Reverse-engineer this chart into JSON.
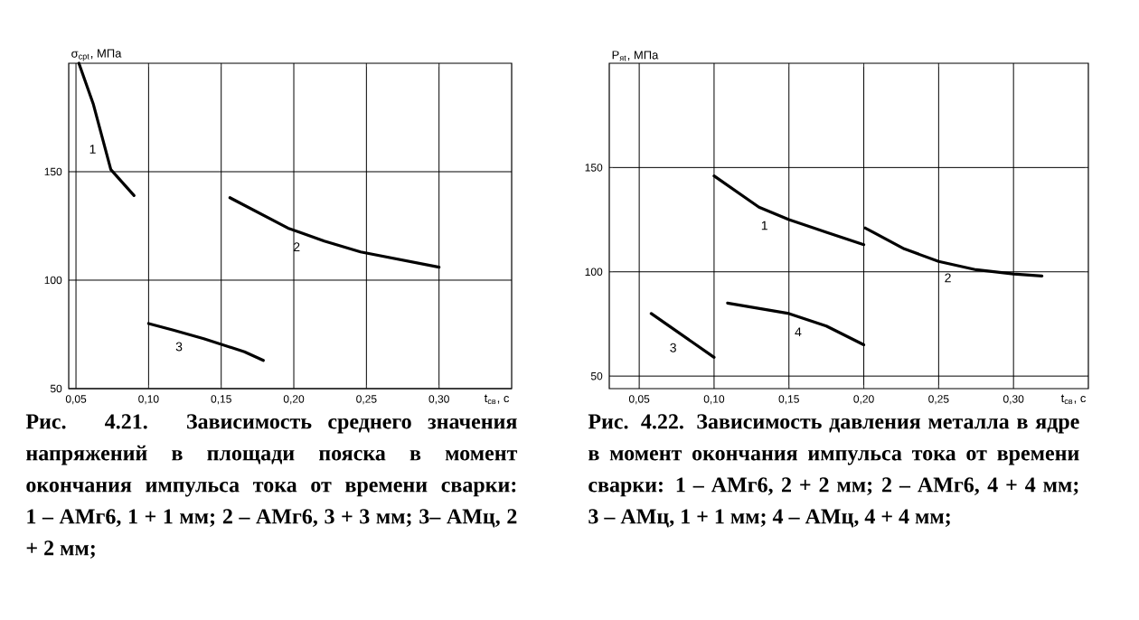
{
  "chart_data": [
    {
      "type": "line",
      "title": "Рис. 4.21. Зависимость среднего значения напряжений в площади пояска в момент окончания импульса тока от времени сварки: 1 – АМг6, 1 + 1 мм; 2 – АМг6, 3 + 3 мм; 3– АМц, 2 + 2 мм;",
      "xlabel": "t$_{св}$, с",
      "ylabel": "σ$_{срt}$, МПа",
      "series": [
        {
          "color": "#000000",
          "x": [
            0.052,
            0.062,
            0.074,
            0.09
          ],
          "values": [
            200,
            181,
            151,
            139
          ]
        },
        {
          "color": "#000000",
          "x": [
            0.156,
            0.196,
            0.221,
            0.246,
            0.3
          ],
          "values": [
            138,
            124,
            118,
            113,
            106
          ]
        },
        {
          "color": "#000000",
          "x": [
            0.1,
            0.117,
            0.138,
            0.166,
            0.179
          ],
          "values": [
            80,
            77,
            73,
            67,
            63
          ]
        }
      ],
      "annotations": [
        "1",
        "2",
        "3"
      ],
      "xlim": [
        0.045,
        0.35
      ],
      "ylim": [
        50,
        200
      ],
      "xticks": [
        {
          "value": 0.05,
          "label": "0,05"
        },
        {
          "value": 0.1,
          "label": "0,10"
        },
        {
          "value": 0.15,
          "label": "0,15"
        },
        {
          "value": 0.2,
          "label": "0,20"
        },
        {
          "value": 0.25,
          "label": "0,25"
        },
        {
          "value": 0.3,
          "label": "0,30"
        }
      ],
      "yticks": [
        50,
        100,
        150
      ],
      "grid": true,
      "line_style": "solid"
    },
    {
      "type": "line",
      "title": "Рис. 4.22. Зависимость давления металла в ядре в момент окончания импульса тока от времени сварки: 1 – АМг6, 2 + 2 мм; 2 – АМг6, 4 + 4 мм; 3 – АМц, 1 + 1 мм; 4 – АМц, 4 + 4 мм;",
      "xlabel": "t$_{св}$, с",
      "ylabel": "P$_{яt}$, МПа",
      "series": [
        {
          "color": "#000000",
          "x": [
            0.1,
            0.13,
            0.15,
            0.175,
            0.2
          ],
          "values": [
            146,
            131,
            125,
            119,
            113
          ]
        },
        {
          "color": "#000000",
          "x": [
            0.201,
            0.227,
            0.25,
            0.275,
            0.3,
            0.319
          ],
          "values": [
            121,
            111,
            105,
            101,
            99,
            98
          ]
        },
        {
          "color": "#000000",
          "x": [
            0.058,
            0.1
          ],
          "values": [
            80,
            59
          ]
        },
        {
          "color": "#000000",
          "x": [
            0.109,
            0.15,
            0.175,
            0.2
          ],
          "values": [
            85,
            80,
            74,
            65
          ]
        }
      ],
      "annotations": [
        "1",
        "2",
        "3",
        "4"
      ],
      "xlim": [
        0.03,
        0.35
      ],
      "ylim": [
        44,
        200
      ],
      "xticks": [
        {
          "value": 0.05,
          "label": "0,05"
        },
        {
          "value": 0.1,
          "label": "0,10"
        },
        {
          "value": 0.15,
          "label": "0,15"
        },
        {
          "value": 0.2,
          "label": "0,20"
        },
        {
          "value": 0.25,
          "label": "0,25"
        },
        {
          "value": 0.3,
          "label": "0,30"
        }
      ],
      "yticks": [
        50,
        100,
        150
      ],
      "grid": true,
      "line_style": "solid"
    }
  ]
}
